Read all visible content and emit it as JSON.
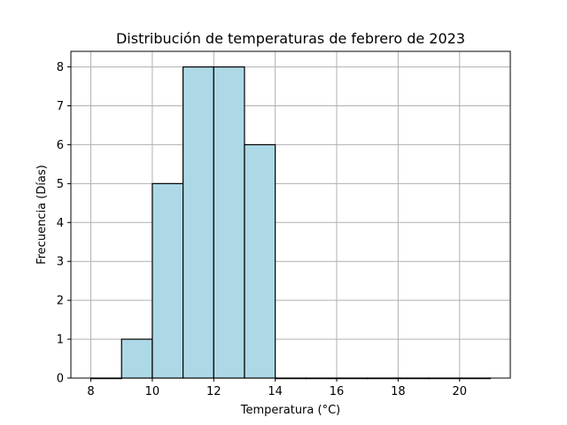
{
  "chart_data": {
    "type": "bar",
    "title": "Distribución de temperaturas de febrero de 2023",
    "xlabel": "Temperatura (°C)",
    "ylabel": "Frecuencia (Días)",
    "bins": [
      {
        "start": 8,
        "end": 9,
        "count": 0
      },
      {
        "start": 9,
        "end": 10,
        "count": 1
      },
      {
        "start": 10,
        "end": 11,
        "count": 5
      },
      {
        "start": 11,
        "end": 12,
        "count": 8
      },
      {
        "start": 12,
        "end": 13,
        "count": 8
      },
      {
        "start": 13,
        "end": 14,
        "count": 6
      },
      {
        "start": 14,
        "end": 15,
        "count": 0
      },
      {
        "start": 15,
        "end": 16,
        "count": 0
      },
      {
        "start": 16,
        "end": 17,
        "count": 0
      },
      {
        "start": 17,
        "end": 18,
        "count": 0
      },
      {
        "start": 18,
        "end": 19,
        "count": 0
      },
      {
        "start": 19,
        "end": 20,
        "count": 0
      },
      {
        "start": 20,
        "end": 21,
        "count": 0
      }
    ],
    "xlim": [
      7.35,
      21.65
    ],
    "ylim": [
      0,
      8.4
    ],
    "xticks": [
      8,
      10,
      12,
      14,
      16,
      18,
      20
    ],
    "yticks": [
      0,
      1,
      2,
      3,
      4,
      5,
      6,
      7,
      8
    ],
    "grid": true,
    "colors": {
      "bar_fill": "#add8e6",
      "bar_edge": "#000000",
      "grid": "#b0b0b0"
    }
  }
}
